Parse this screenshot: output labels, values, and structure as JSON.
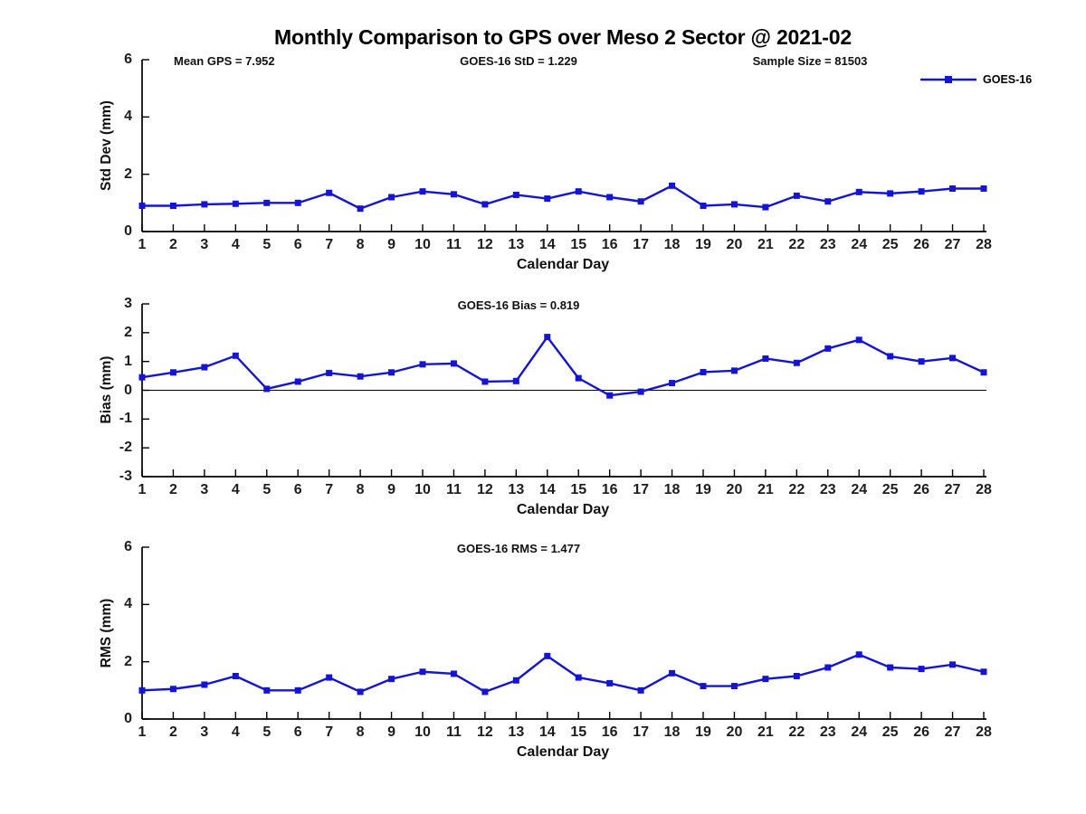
{
  "figure": {
    "title": "Monthly Comparison to GPS over Meso 2 Sector @ 2021-02"
  },
  "chart_data": [
    {
      "type": "line",
      "id": "std-dev",
      "title": "Monthly Comparison to GPS over Meso 2 Sector @ 2021-02",
      "subtitle_left": "Mean GPS = 7.952",
      "subtitle_center": "GOES-16 StD = 1.229",
      "subtitle_right": "Sample Size = 81503",
      "xlabel": "Calendar Day",
      "ylabel": "Std Dev (mm)",
      "ylim": [
        0,
        6
      ],
      "yticks": [
        0,
        2,
        4,
        6
      ],
      "grid": false,
      "zero_line": false,
      "legend": {
        "visible": true,
        "position": "top-right-outside",
        "label": "GOES-16"
      },
      "x": [
        1,
        2,
        3,
        4,
        5,
        6,
        7,
        8,
        9,
        10,
        11,
        12,
        13,
        14,
        15,
        16,
        17,
        18,
        19,
        20,
        21,
        22,
        23,
        24,
        25,
        26,
        27,
        28
      ],
      "series": [
        {
          "name": "GOES-16",
          "color": "#1414d6",
          "marker": "square",
          "values": [
            0.9,
            0.9,
            0.95,
            0.97,
            1.0,
            1.0,
            1.35,
            0.8,
            1.2,
            1.4,
            1.3,
            0.95,
            1.28,
            1.15,
            1.4,
            1.2,
            1.05,
            1.6,
            0.9,
            0.95,
            0.85,
            1.25,
            1.05,
            1.38,
            1.33,
            1.4,
            1.5,
            1.5
          ]
        }
      ]
    },
    {
      "type": "line",
      "id": "bias",
      "subtitle_center": "GOES-16 Bias = 0.819",
      "xlabel": "Calendar Day",
      "ylabel": "Bias (mm)",
      "ylim": [
        -3,
        3
      ],
      "yticks": [
        -3,
        -2,
        -1,
        0,
        1,
        2,
        3
      ],
      "grid": false,
      "zero_line": true,
      "legend": {
        "visible": false
      },
      "x": [
        1,
        2,
        3,
        4,
        5,
        6,
        7,
        8,
        9,
        10,
        11,
        12,
        13,
        14,
        15,
        16,
        17,
        18,
        19,
        20,
        21,
        22,
        23,
        24,
        25,
        26,
        27,
        28
      ],
      "series": [
        {
          "name": "GOES-16",
          "color": "#1414d6",
          "marker": "square",
          "values": [
            0.45,
            0.62,
            0.8,
            1.2,
            0.05,
            0.3,
            0.6,
            0.48,
            0.62,
            0.9,
            0.93,
            0.3,
            0.32,
            1.85,
            0.42,
            -0.18,
            -0.05,
            0.25,
            0.63,
            0.68,
            1.1,
            0.95,
            1.45,
            1.75,
            1.18,
            1.0,
            1.12,
            0.62
          ]
        }
      ]
    },
    {
      "type": "line",
      "id": "rms",
      "subtitle_center": "GOES-16 RMS = 1.477",
      "xlabel": "Calendar Day",
      "ylabel": "RMS (mm)",
      "ylim": [
        0,
        6
      ],
      "yticks": [
        0,
        2,
        4,
        6
      ],
      "grid": false,
      "zero_line": false,
      "legend": {
        "visible": false
      },
      "x": [
        1,
        2,
        3,
        4,
        5,
        6,
        7,
        8,
        9,
        10,
        11,
        12,
        13,
        14,
        15,
        16,
        17,
        18,
        19,
        20,
        21,
        22,
        23,
        24,
        25,
        26,
        27,
        28
      ],
      "series": [
        {
          "name": "GOES-16",
          "color": "#1414d6",
          "marker": "square",
          "values": [
            1.0,
            1.05,
            1.2,
            1.5,
            1.0,
            1.0,
            1.45,
            0.95,
            1.4,
            1.65,
            1.58,
            0.95,
            1.35,
            2.2,
            1.45,
            1.25,
            1.0,
            1.6,
            1.15,
            1.15,
            1.4,
            1.5,
            1.8,
            2.25,
            1.8,
            1.75,
            1.9,
            1.65
          ]
        }
      ]
    }
  ]
}
